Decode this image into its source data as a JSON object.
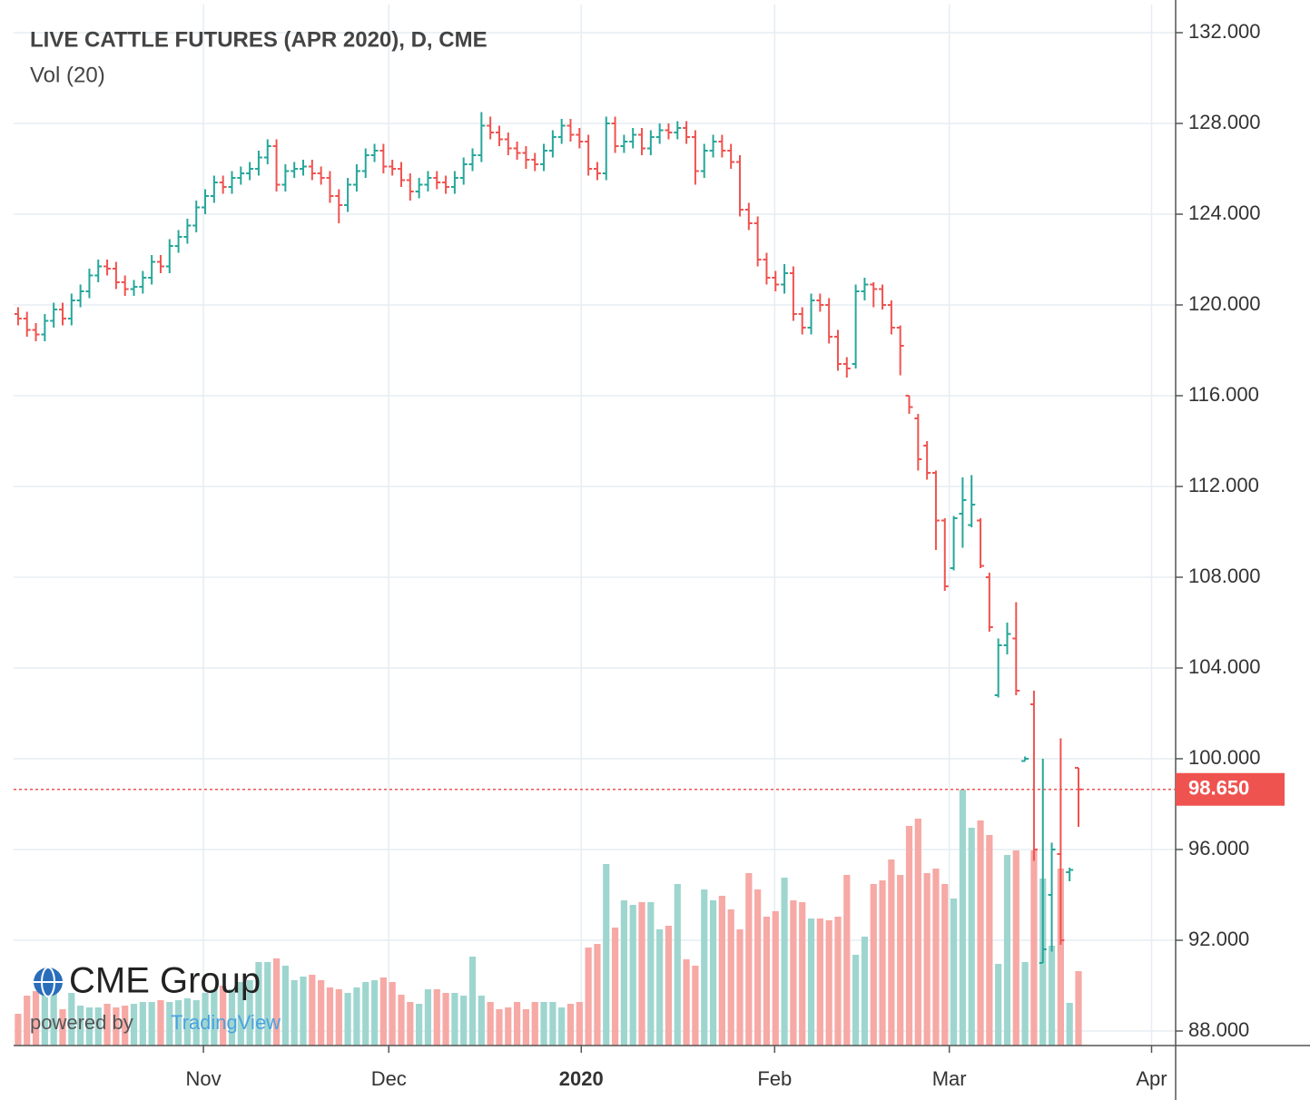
{
  "chart_data": {
    "type": "ohlc",
    "title": "LIVE CATTLE FUTURES (APR 2020), D, CME",
    "subtitle": "Vol (20)",
    "branding": {
      "name": "CME Group",
      "powered": "powered by",
      "provider": "TradingView"
    },
    "up_color": "#26a69a",
    "down_color": "#ef5350",
    "volume_up_color": "#9ed6cf",
    "volume_down_color": "#f6a9a5",
    "grid": true,
    "xlim": [
      -0.5,
      129.9
    ],
    "xticks": [
      {
        "value": 20.8,
        "label": "Nov"
      },
      {
        "value": 41.6,
        "label": "Dec"
      },
      {
        "value": 63.2,
        "label": "2020"
      },
      {
        "value": 84.9,
        "label": "Feb"
      },
      {
        "value": 104.5,
        "label": "Mar"
      },
      {
        "value": 127.2,
        "label": "Apr"
      }
    ],
    "ylim": [
      87.36,
      133.24
    ],
    "yticks": [
      {
        "value": 88,
        "label": "88.000"
      },
      {
        "value": 92,
        "label": "92.000"
      },
      {
        "value": 96,
        "label": "96.000"
      },
      {
        "value": 100,
        "label": "100.000"
      },
      {
        "value": 104,
        "label": "104.000"
      },
      {
        "value": 108,
        "label": "108.000"
      },
      {
        "value": 112,
        "label": "112.000"
      },
      {
        "value": 116,
        "label": "116.000"
      },
      {
        "value": 120,
        "label": "120.000"
      },
      {
        "value": 124,
        "label": "124.000"
      },
      {
        "value": 128,
        "label": "128.000"
      },
      {
        "value": 132,
        "label": "132.000"
      }
    ],
    "last_price": {
      "value": 98.65,
      "label": "98.650"
    },
    "open": [
      119.6,
      119.4,
      118.9,
      118.7,
      119.3,
      119.8,
      119.4,
      120.2,
      120.6,
      121.3,
      121.7,
      121.6,
      121.0,
      120.7,
      120.8,
      121.2,
      121.9,
      121.7,
      122.6,
      123.0,
      123.5,
      124.3,
      124.8,
      125.4,
      125.2,
      125.6,
      125.8,
      126.0,
      126.5,
      127.0,
      125.3,
      125.9,
      126.0,
      126.1,
      125.8,
      125.6,
      124.8,
      124.4,
      125.3,
      125.9,
      126.6,
      126.8,
      126.1,
      126.0,
      125.5,
      125.0,
      125.3,
      125.6,
      125.4,
      125.2,
      125.6,
      126.2,
      126.6,
      127.9,
      127.6,
      127.3,
      126.9,
      126.7,
      126.4,
      126.2,
      126.8,
      127.4,
      127.9,
      127.5,
      127.2,
      126.0,
      125.8,
      128.0,
      127.0,
      127.2,
      127.5,
      126.9,
      127.4,
      127.7,
      127.6,
      127.8,
      127.4,
      125.9,
      126.8,
      127.2,
      126.8,
      126.3,
      124.2,
      123.6,
      122.0,
      121.2,
      120.9,
      121.4,
      119.6,
      119.0,
      120.2,
      120.0,
      118.6,
      117.4,
      117.4,
      120.6,
      120.9,
      120.7,
      120.0,
      119.0,
      116.0,
      115.0,
      113.8,
      112.6,
      110.5,
      108.4,
      110.8,
      110.3,
      110.5,
      108.0,
      102.8,
      105.0,
      105.3,
      99.9,
      102.4,
      91.0,
      94.0,
      95.8,
      95.0,
      99.6
    ],
    "high": [
      119.9,
      119.7,
      119.2,
      119.6,
      120.1,
      120.1,
      120.5,
      120.9,
      121.6,
      122.0,
      122.0,
      121.9,
      121.3,
      121.1,
      121.5,
      122.2,
      122.2,
      122.9,
      123.3,
      123.8,
      124.6,
      125.1,
      125.7,
      125.7,
      125.9,
      126.1,
      126.3,
      126.8,
      127.3,
      127.3,
      126.2,
      126.3,
      126.4,
      126.4,
      126.1,
      125.9,
      125.1,
      125.6,
      126.2,
      126.9,
      127.1,
      127.1,
      126.4,
      126.3,
      125.8,
      125.6,
      125.9,
      125.9,
      125.7,
      125.9,
      126.5,
      126.9,
      128.5,
      128.3,
      127.9,
      127.6,
      127.2,
      127.0,
      126.7,
      127.1,
      127.7,
      128.2,
      128.2,
      127.8,
      127.5,
      126.3,
      128.3,
      128.3,
      127.5,
      127.8,
      127.8,
      127.7,
      128.0,
      128.0,
      128.1,
      128.1,
      127.7,
      127.1,
      127.5,
      127.5,
      127.1,
      126.6,
      124.5,
      123.9,
      122.3,
      121.5,
      121.8,
      121.7,
      119.9,
      120.5,
      120.5,
      120.3,
      118.9,
      117.7,
      120.9,
      121.2,
      121.0,
      120.9,
      120.2,
      119.1,
      116.0,
      115.2,
      114.0,
      112.7,
      110.6,
      110.7,
      112.4,
      112.5,
      110.6,
      108.2,
      105.3,
      106.0,
      106.9,
      100.1,
      103.0,
      100.0,
      96.3,
      100.9,
      95.2,
      99.6
    ],
    "low": [
      119.1,
      118.6,
      118.4,
      118.4,
      119.0,
      119.1,
      119.1,
      119.9,
      120.3,
      121.0,
      121.3,
      120.7,
      120.4,
      120.4,
      120.5,
      120.9,
      121.4,
      121.4,
      122.3,
      122.7,
      123.2,
      124.0,
      124.5,
      124.9,
      124.9,
      125.3,
      125.5,
      125.7,
      126.2,
      125.0,
      125.0,
      125.6,
      125.7,
      125.5,
      125.3,
      124.5,
      123.6,
      124.1,
      125.0,
      125.6,
      126.3,
      125.8,
      125.7,
      125.2,
      124.6,
      124.7,
      125.0,
      125.1,
      124.9,
      124.9,
      125.3,
      125.9,
      126.3,
      127.3,
      127.0,
      126.6,
      126.4,
      126.0,
      125.9,
      125.9,
      126.5,
      127.1,
      127.2,
      126.9,
      125.7,
      125.5,
      125.5,
      126.7,
      126.7,
      126.9,
      126.6,
      126.6,
      127.1,
      127.3,
      127.3,
      127.1,
      125.3,
      125.6,
      126.5,
      126.5,
      126.0,
      123.9,
      123.3,
      121.7,
      120.9,
      120.6,
      120.5,
      119.3,
      118.7,
      118.7,
      119.7,
      118.3,
      117.1,
      116.8,
      117.2,
      120.2,
      119.9,
      119.8,
      118.7,
      116.9,
      115.2,
      112.7,
      112.3,
      109.2,
      107.4,
      108.3,
      109.3,
      110.2,
      108.4,
      105.6,
      102.7,
      104.6,
      102.8,
      99.9,
      95.5,
      91.0,
      91.5,
      91.8,
      94.6,
      97.0
    ],
    "close": [
      119.4,
      118.9,
      118.7,
      119.3,
      119.8,
      119.4,
      120.2,
      120.6,
      121.3,
      121.7,
      121.6,
      121.0,
      120.7,
      120.8,
      121.2,
      121.9,
      121.7,
      122.6,
      123.0,
      123.5,
      124.3,
      124.8,
      125.4,
      125.2,
      125.6,
      125.8,
      126.0,
      126.5,
      127.0,
      125.3,
      125.9,
      126.0,
      126.1,
      125.8,
      125.6,
      124.8,
      124.4,
      125.3,
      125.9,
      126.6,
      126.8,
      126.1,
      126.0,
      125.5,
      125.0,
      125.3,
      125.6,
      125.4,
      125.2,
      125.6,
      126.2,
      126.6,
      127.9,
      127.6,
      127.3,
      126.9,
      126.7,
      126.4,
      126.2,
      126.8,
      127.4,
      127.9,
      127.5,
      127.2,
      126.0,
      125.8,
      128.0,
      127.0,
      127.2,
      127.5,
      126.9,
      127.4,
      127.7,
      127.6,
      127.8,
      127.4,
      125.9,
      126.8,
      127.2,
      126.8,
      126.3,
      124.2,
      123.6,
      122.0,
      121.2,
      120.9,
      121.4,
      119.6,
      119.0,
      120.2,
      120.0,
      118.6,
      117.4,
      117.2,
      120.6,
      120.9,
      120.7,
      120.0,
      119.0,
      118.2,
      115.5,
      113.2,
      112.6,
      110.5,
      107.6,
      110.6,
      111.4,
      111.2,
      108.5,
      105.8,
      105.0,
      105.5,
      103.0,
      100.0,
      96.0,
      91.6,
      96.0,
      92.0,
      95.1,
      98.65
    ],
    "volume": [
      7000,
      11000,
      12000,
      12400,
      11600,
      8000,
      11600,
      8800,
      8400,
      8400,
      9200,
      8400,
      8800,
      9200,
      9600,
      9600,
      10000,
      9600,
      10000,
      10400,
      10000,
      11600,
      12400,
      13200,
      12400,
      14000,
      14400,
      18400,
      18400,
      19200,
      17600,
      14400,
      15200,
      15600,
      14400,
      12800,
      12400,
      11600,
      12800,
      14000,
      14400,
      15000,
      14000,
      11200,
      9600,
      9200,
      12400,
      12400,
      11600,
      11600,
      11000,
      19600,
      11000,
      9600,
      8000,
      8400,
      9600,
      8000,
      9600,
      9600,
      9600,
      8400,
      9200,
      9600,
      21600,
      22400,
      40000,
      26000,
      32000,
      31000,
      31600,
      31600,
      25600,
      26400,
      35600,
      19000,
      17600,
      34400,
      32000,
      33000,
      30000,
      25600,
      38000,
      34400,
      28400,
      29600,
      37000,
      32000,
      31600,
      28000,
      28000,
      27600,
      28400,
      37600,
      20000,
      24000,
      35600,
      36400,
      41000,
      37600,
      48400,
      50000,
      38000,
      39000,
      35600,
      32400,
      56400,
      48000,
      49600,
      46400,
      18000,
      42000,
      43000,
      18400,
      43000,
      36800,
      22000,
      39000,
      9400,
      16400
    ]
  }
}
